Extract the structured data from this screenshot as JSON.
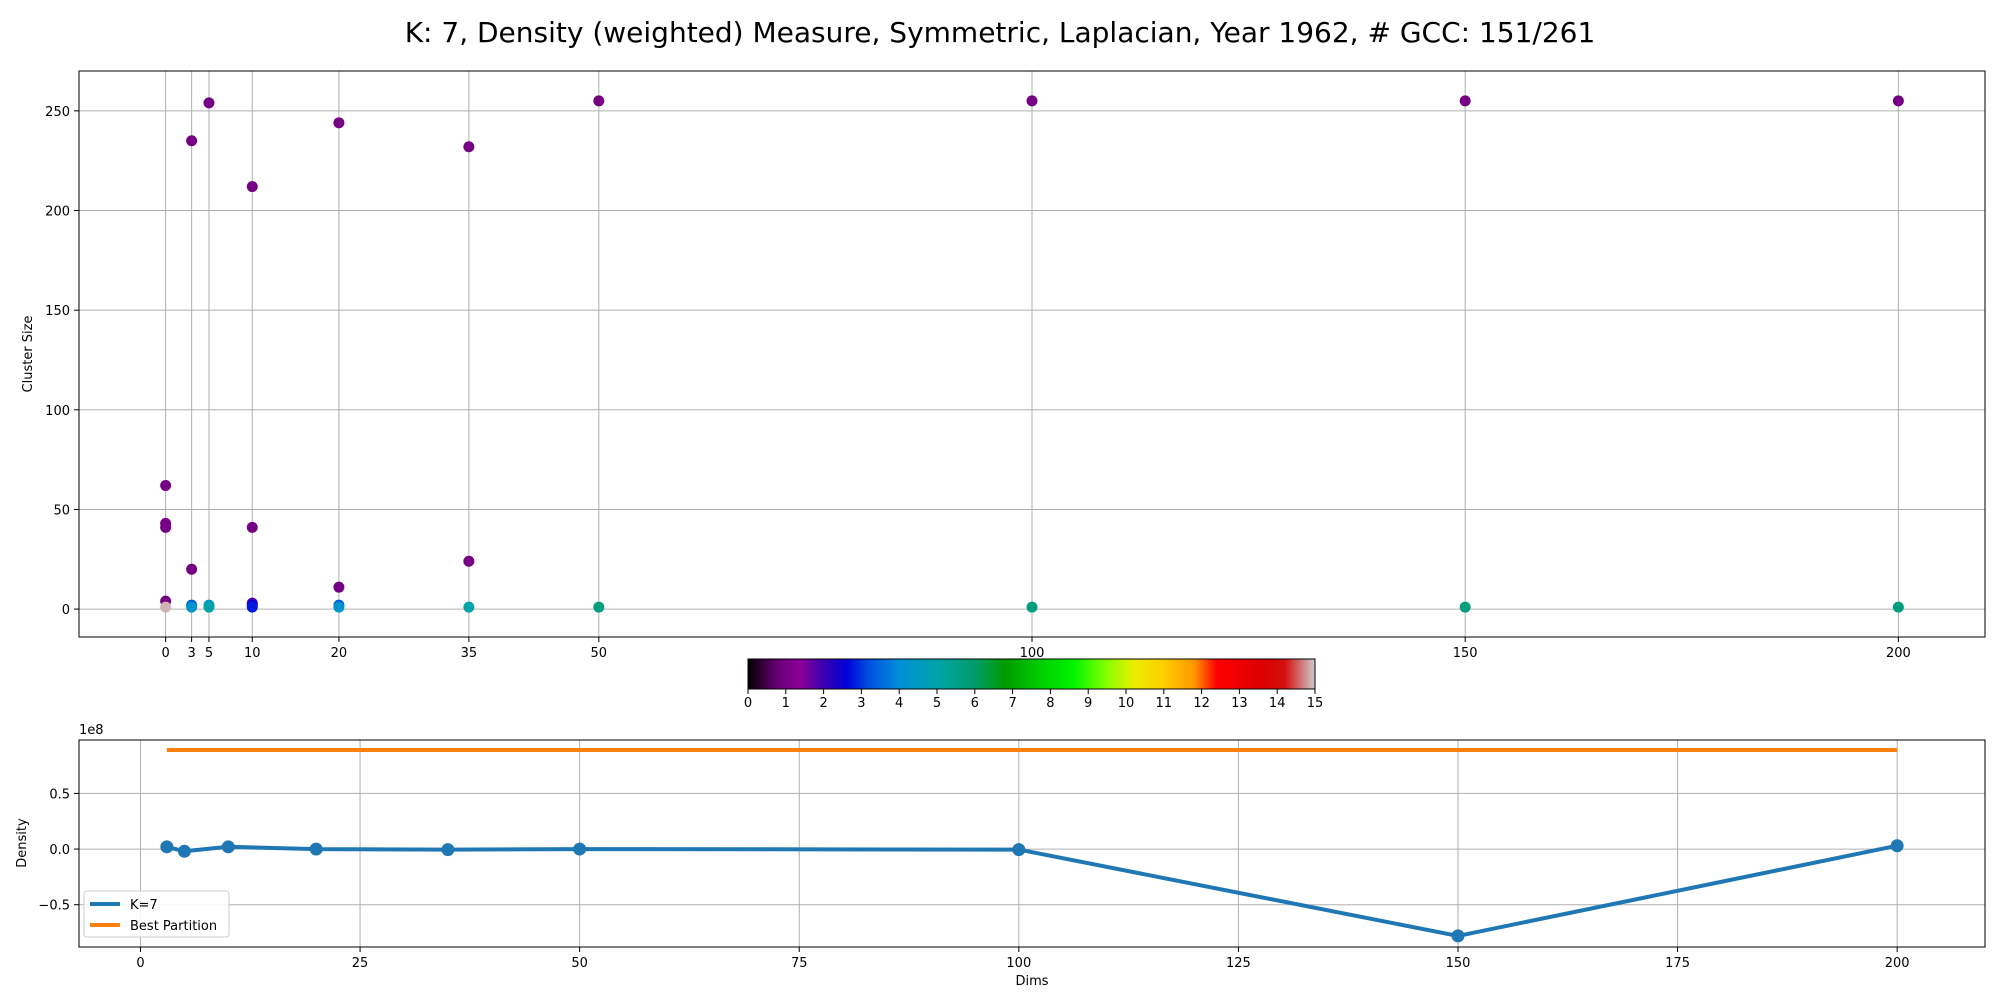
{
  "title": "K: 7, Density (weighted) Measure, Symmetric, Laplacian, Year 1962, # GCC: 151/261",
  "chart_data": [
    {
      "type": "scatter",
      "title": "",
      "xlabel": "",
      "ylabel": "Cluster Size",
      "xlim": [
        -10,
        210
      ],
      "ylim": [
        -14,
        270
      ],
      "grid": true,
      "x_ticks": [
        0,
        3,
        5,
        10,
        20,
        35,
        50,
        100,
        150,
        200
      ],
      "y_ticks": [
        0,
        50,
        100,
        150,
        200,
        250
      ],
      "points": [
        {
          "x": 0,
          "y": 62,
          "c": 1
        },
        {
          "x": 0,
          "y": 43,
          "c": 1
        },
        {
          "x": 0,
          "y": 41,
          "c": 1
        },
        {
          "x": 0,
          "y": 4,
          "c": 1
        },
        {
          "x": 0,
          "y": 1,
          "c": 14.9
        },
        {
          "x": 3,
          "y": 235,
          "c": 1
        },
        {
          "x": 3,
          "y": 20,
          "c": 1
        },
        {
          "x": 3,
          "y": 2,
          "c": 3.3
        },
        {
          "x": 3,
          "y": 1,
          "c": 4.3
        },
        {
          "x": 5,
          "y": 254,
          "c": 1
        },
        {
          "x": 5,
          "y": 2,
          "c": 4.3
        },
        {
          "x": 5,
          "y": 1,
          "c": 5
        },
        {
          "x": 10,
          "y": 212,
          "c": 1
        },
        {
          "x": 10,
          "y": 41,
          "c": 1
        },
        {
          "x": 10,
          "y": 3,
          "c": 1.8
        },
        {
          "x": 10,
          "y": 2,
          "c": 2.5
        },
        {
          "x": 10,
          "y": 1,
          "c": 2.8
        },
        {
          "x": 20,
          "y": 244,
          "c": 1
        },
        {
          "x": 20,
          "y": 11,
          "c": 1
        },
        {
          "x": 20,
          "y": 2,
          "c": 3.3
        },
        {
          "x": 20,
          "y": 1,
          "c": 4.3
        },
        {
          "x": 35,
          "y": 232,
          "c": 1
        },
        {
          "x": 35,
          "y": 24,
          "c": 1
        },
        {
          "x": 35,
          "y": 1,
          "c": 5
        },
        {
          "x": 50,
          "y": 255,
          "c": 1
        },
        {
          "x": 50,
          "y": 1,
          "c": 5.7
        },
        {
          "x": 100,
          "y": 255,
          "c": 1
        },
        {
          "x": 100,
          "y": 1,
          "c": 5.7
        },
        {
          "x": 150,
          "y": 255,
          "c": 1
        },
        {
          "x": 150,
          "y": 1,
          "c": 5.7
        },
        {
          "x": 200,
          "y": 255,
          "c": 1
        },
        {
          "x": 200,
          "y": 1,
          "c": 5.7
        }
      ]
    },
    {
      "type": "colorbar",
      "range": [
        0,
        15
      ],
      "ticks": [
        0,
        1,
        2,
        3,
        4,
        5,
        6,
        7,
        8,
        9,
        10,
        11,
        12,
        13,
        14,
        15
      ],
      "stops": [
        {
          "v": 0,
          "color": "#000000"
        },
        {
          "v": 0.8,
          "color": "#6a0078"
        },
        {
          "v": 1.4,
          "color": "#8a0098"
        },
        {
          "v": 2.0,
          "color": "#3a00b0"
        },
        {
          "v": 2.6,
          "color": "#0000d8"
        },
        {
          "v": 3.2,
          "color": "#0050e0"
        },
        {
          "v": 4.0,
          "color": "#008fd8"
        },
        {
          "v": 5.0,
          "color": "#00a4a8"
        },
        {
          "v": 6.0,
          "color": "#009c6a"
        },
        {
          "v": 6.8,
          "color": "#009a00"
        },
        {
          "v": 7.6,
          "color": "#00c800"
        },
        {
          "v": 8.6,
          "color": "#00f400"
        },
        {
          "v": 9.5,
          "color": "#88ff00"
        },
        {
          "v": 10.2,
          "color": "#eaee00"
        },
        {
          "v": 11.0,
          "color": "#ffce00"
        },
        {
          "v": 11.8,
          "color": "#ff9800"
        },
        {
          "v": 12.4,
          "color": "#ff0000"
        },
        {
          "v": 13.6,
          "color": "#dc0000"
        },
        {
          "v": 14.2,
          "color": "#d41010"
        },
        {
          "v": 15,
          "color": "#cccccc"
        }
      ]
    },
    {
      "type": "line",
      "title": "",
      "xlabel": "Dims",
      "ylabel": "Density",
      "y_offset_label": "1e8",
      "xlim": [
        -7,
        210
      ],
      "ylim": [
        -0.88,
        0.98
      ],
      "grid": true,
      "x_ticks": [
        0,
        25,
        50,
        75,
        100,
        125,
        150,
        175,
        200
      ],
      "y_ticks": [
        -0.5,
        0.0,
        0.5
      ],
      "y_tick_labels": [
        "−0.5",
        "0.0",
        "0.5"
      ],
      "legend_position": "lower-left",
      "series": [
        {
          "name": "K=7",
          "color": "#1f77b4",
          "markers": true,
          "x": [
            3,
            5,
            10,
            20,
            35,
            50,
            100,
            150,
            200
          ],
          "y": [
            0.02,
            -0.02,
            0.02,
            0.0,
            -0.005,
            0.0,
            -0.005,
            -0.78,
            0.03
          ]
        },
        {
          "name": "Best Partition",
          "color": "#ff7f0e",
          "markers": false,
          "x": [
            3,
            200
          ],
          "y": [
            0.89,
            0.89
          ]
        }
      ]
    }
  ]
}
